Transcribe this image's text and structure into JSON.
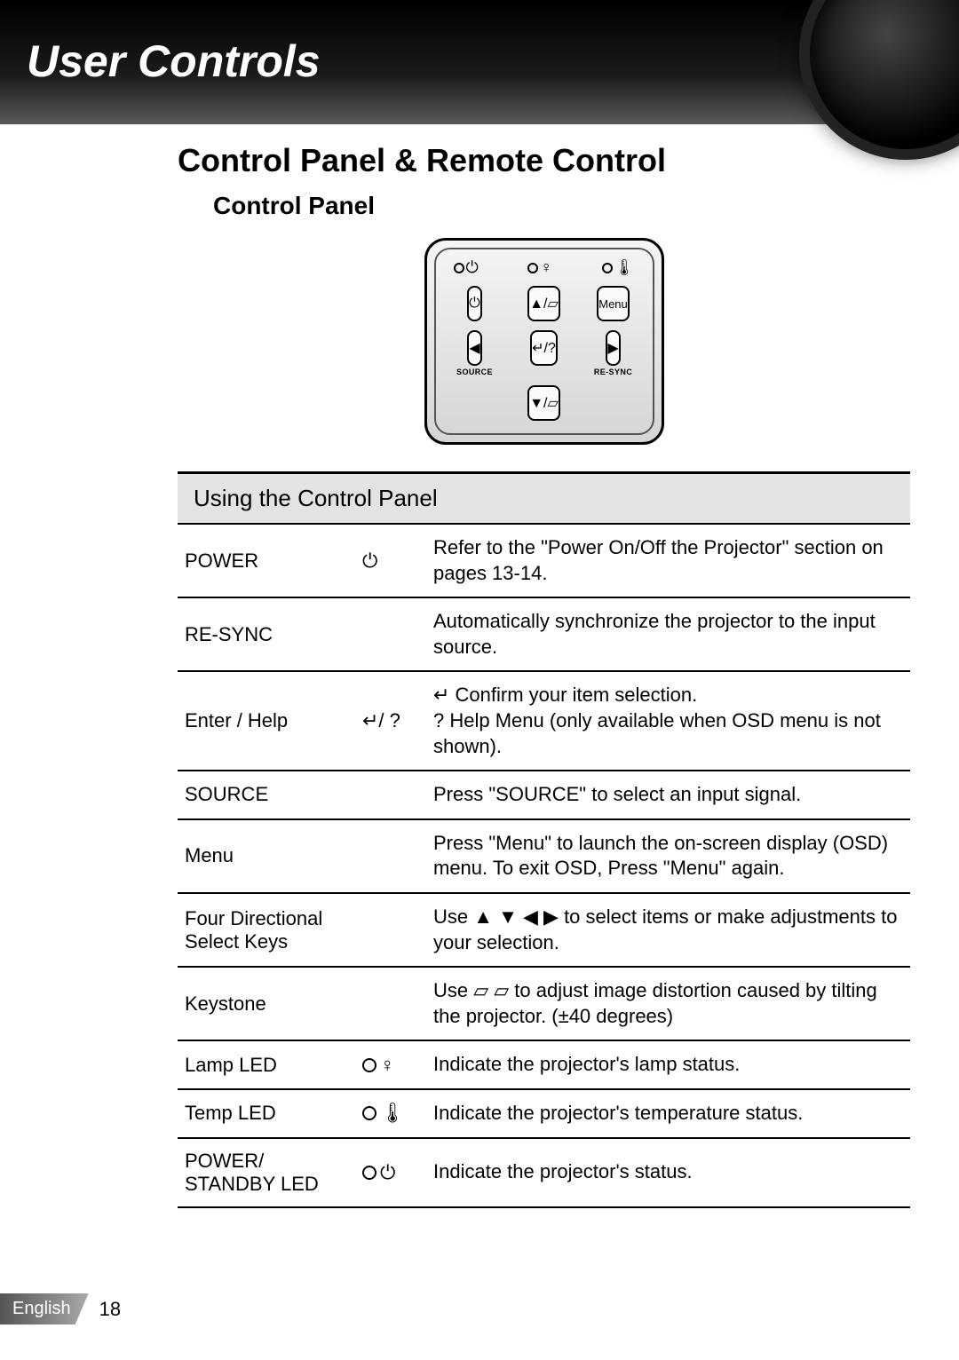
{
  "header": {
    "title": "User Controls"
  },
  "section": {
    "h1": "Control Panel & Remote Control",
    "h2": "Control Panel"
  },
  "panel": {
    "leds": [
      {
        "icon": "power"
      },
      {
        "icon": "lamp"
      },
      {
        "icon": "temp"
      }
    ],
    "buttons": {
      "power": "⏻",
      "up": "▲/▱",
      "menu": "Menu",
      "left": "◀",
      "enter": "↵/?",
      "right": "▶",
      "down": "▼/▱",
      "source_label": "SOURCE",
      "resync_label": "RE-SYNC"
    }
  },
  "table": {
    "title": "Using the Control Panel",
    "rows": [
      {
        "label": "POWER",
        "icon": "⏻",
        "desc": "Refer to the \"Power On/Off the Projector\" section on pages 13-14."
      },
      {
        "label": "RE-SYNC",
        "icon": "",
        "desc": "Automatically synchronize the projector to the input source."
      },
      {
        "label": "Enter / Help",
        "icon": "↵/ ?",
        "desc_pre": "↵ Confirm your item selection.",
        "desc_post": "? Help Menu (only available when OSD menu is not shown)."
      },
      {
        "label": "SOURCE",
        "icon": "",
        "desc": "Press \"SOURCE\" to select an input signal."
      },
      {
        "label": "Menu",
        "icon": "",
        "desc": "Press \"Menu\" to launch the on-screen display (OSD) menu. To exit OSD, Press \"Menu\" again."
      },
      {
        "label": "Four Directional Select Keys",
        "icon": "",
        "desc": "Use ▲ ▼ ◀ ▶ to select items or make adjustments to your selection."
      },
      {
        "label": "Keystone",
        "icon": "",
        "desc": "Use ▱ ▱ to adjust image distortion caused by tilting the projector. (±40 degrees)"
      },
      {
        "label": "Lamp LED",
        "icon_circle": true,
        "icon_glyph": "♀",
        "desc": "Indicate the projector's lamp status."
      },
      {
        "label": "Temp LED",
        "icon_circle": true,
        "icon_glyph": "🌡",
        "desc": "Indicate the projector's temperature status."
      },
      {
        "label": "POWER/ STANDBY LED",
        "icon_circle": true,
        "icon_glyph": "⏻",
        "desc": "Indicate the projector's status."
      }
    ]
  },
  "footer": {
    "language": "English",
    "page": "18"
  },
  "colors": {
    "header_bg_top": "#000000",
    "header_bg_bottom": "#595959",
    "table_title_bg": "#e3e3e3",
    "border": "#000000"
  }
}
